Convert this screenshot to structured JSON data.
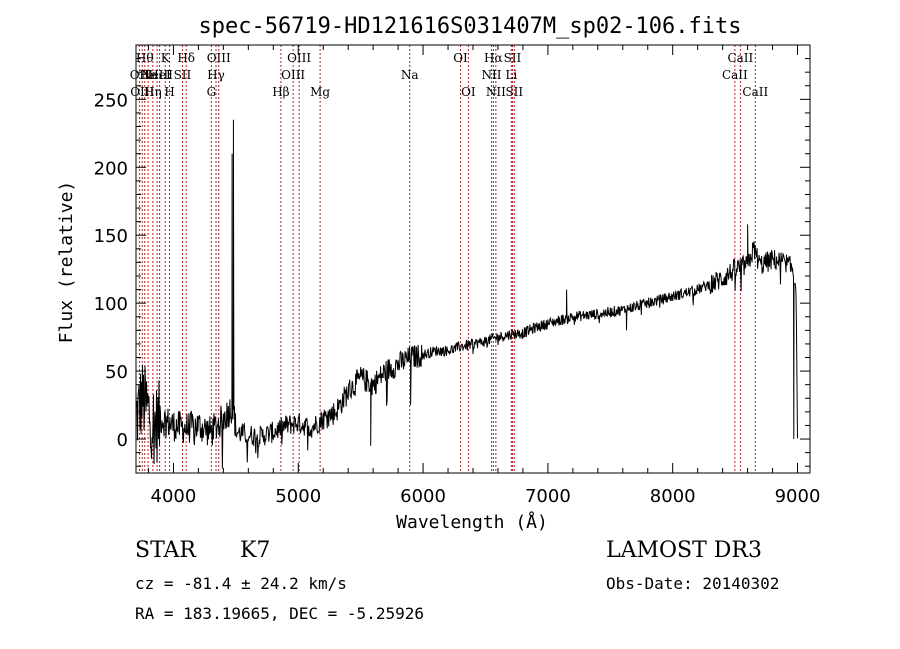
{
  "chart_data": {
    "type": "line",
    "title": "spec-56719-HD121616S031407M_sp02-106.fits",
    "xlabel": "Wavelength (Å)",
    "ylabel": "Flux (relative)",
    "xlim": [
      3700,
      9100
    ],
    "ylim": [
      -25,
      290
    ],
    "xticks": [
      4000,
      5000,
      6000,
      7000,
      8000,
      9000
    ],
    "yticks": [
      0,
      50,
      100,
      150,
      200,
      250
    ],
    "colors": {
      "line": "#000000",
      "marker": "#b22222",
      "axis": "#000000"
    },
    "anchors": {
      "x": [
        3700,
        3750,
        3800,
        3850,
        3900,
        4000,
        4100,
        4200,
        4300,
        4400,
        4480,
        4500,
        4600,
        4700,
        4800,
        4900,
        5000,
        5100,
        5200,
        5300,
        5400,
        5500,
        5600,
        5700,
        5800,
        5900,
        6000,
        6100,
        6200,
        6300,
        6400,
        6500,
        6600,
        6700,
        6800,
        6900,
        7000,
        7200,
        7400,
        7600,
        7800,
        8000,
        8200,
        8400,
        8500,
        8600,
        8650,
        8700,
        8800,
        8900,
        8960,
        8990,
        9000
      ],
      "y": [
        15,
        30,
        20,
        10,
        15,
        10,
        8,
        10,
        5,
        15,
        25,
        5,
        3,
        2,
        5,
        10,
        12,
        8,
        15,
        20,
        35,
        45,
        40,
        50,
        55,
        60,
        62,
        65,
        65,
        68,
        70,
        72,
        75,
        77,
        78,
        82,
        85,
        90,
        92,
        95,
        100,
        105,
        110,
        118,
        125,
        128,
        140,
        128,
        132,
        130,
        125,
        110,
        0
      ]
    },
    "spikes": [
      {
        "x": 4480,
        "y": 235
      },
      {
        "x": 4470,
        "y": 210
      },
      {
        "x": 5580,
        "y": -5
      },
      {
        "x": 5900,
        "y": 25
      },
      {
        "x": 7150,
        "y": 110
      },
      {
        "x": 7630,
        "y": 80
      },
      {
        "x": 8600,
        "y": 158
      },
      {
        "x": 8970,
        "y": 0
      }
    ],
    "lines": [
      {
        "x": 3727,
        "row": 1,
        "label": "OII"
      },
      {
        "x": 3750,
        "row": 2,
        "label": "OIII"
      },
      {
        "x": 3770,
        "row": 0,
        "label": "Hθ"
      },
      {
        "x": 3797,
        "row": 1,
        "label": "He"
      },
      {
        "x": 3835,
        "row": 2,
        "label": "Hη"
      },
      {
        "x": 3869,
        "row": 1,
        "label": "NeIII"
      },
      {
        "x": 3889,
        "row": 1,
        "label": "HeI"
      },
      {
        "x": 3934,
        "row": 0,
        "label": "K"
      },
      {
        "x": 3969,
        "row": 2,
        "label": "H"
      },
      {
        "x": 4072,
        "row": 1,
        "label": "SII"
      },
      {
        "x": 4102,
        "row": 0,
        "label": "Hδ"
      },
      {
        "x": 4304,
        "row": 2,
        "label": "G"
      },
      {
        "x": 4341,
        "row": 1,
        "label": "Hγ"
      },
      {
        "x": 4363,
        "row": 0,
        "label": "OIII"
      },
      {
        "x": 4861,
        "row": 2,
        "label": "Hβ"
      },
      {
        "x": 4959,
        "row": 1,
        "label": "OIII"
      },
      {
        "x": 5007,
        "row": 0,
        "label": "OIII"
      },
      {
        "x": 5175,
        "row": 2,
        "label": "Mg"
      },
      {
        "x": 5893,
        "row": 1,
        "label": "Na"
      },
      {
        "x": 6300,
        "row": 0,
        "label": "OI"
      },
      {
        "x": 6363,
        "row": 2,
        "label": "OI"
      },
      {
        "x": 6548,
        "row": 1,
        "label": "NII"
      },
      {
        "x": 6563,
        "row": 0,
        "label": "Hα"
      },
      {
        "x": 6583,
        "row": 2,
        "label": "NII"
      },
      {
        "x": 6707,
        "row": 1,
        "label": "Li"
      },
      {
        "x": 6716,
        "row": 0,
        "label": "SII"
      },
      {
        "x": 6731,
        "row": 2,
        "label": "SII"
      },
      {
        "x": 8498,
        "row": 1,
        "label": "CaII"
      },
      {
        "x": 8542,
        "row": 0,
        "label": "CaII"
      },
      {
        "x": 8662,
        "row": 2,
        "label": "CaII"
      }
    ]
  },
  "info": {
    "object_class": "STAR",
    "subclass": "K7",
    "survey": "LAMOST DR3",
    "redshift": "cz = -81.4 ± 24.2 km/s",
    "obs_date": "Obs-Date: 20140302",
    "coords": "RA = 183.19665, DEC =  -5.25926"
  }
}
